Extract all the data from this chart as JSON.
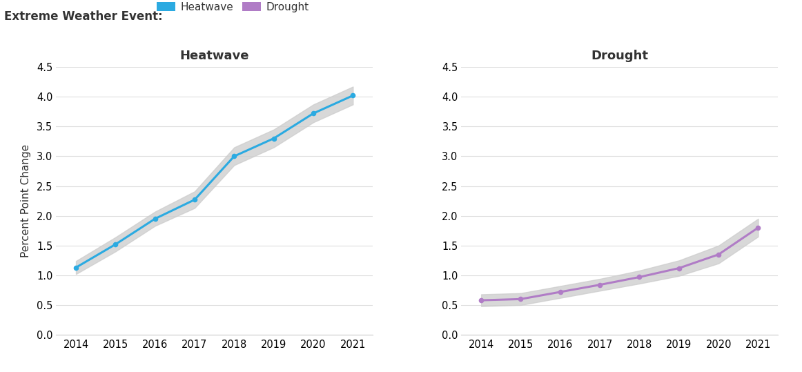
{
  "years": [
    2014,
    2015,
    2016,
    2017,
    2018,
    2019,
    2020,
    2021
  ],
  "heatwave_y": [
    1.13,
    1.52,
    1.95,
    2.27,
    3.0,
    3.3,
    3.72,
    4.02
  ],
  "heatwave_y_low": [
    1.02,
    1.4,
    1.83,
    2.13,
    2.85,
    3.15,
    3.57,
    3.87
  ],
  "heatwave_y_high": [
    1.24,
    1.64,
    2.07,
    2.41,
    3.15,
    3.45,
    3.87,
    4.17
  ],
  "drought_y": [
    0.58,
    0.6,
    0.72,
    0.84,
    0.97,
    1.12,
    1.35,
    1.8
  ],
  "drought_y_low": [
    0.48,
    0.5,
    0.62,
    0.74,
    0.86,
    0.99,
    1.2,
    1.65
  ],
  "drought_y_high": [
    0.68,
    0.7,
    0.82,
    0.94,
    1.08,
    1.25,
    1.5,
    1.95
  ],
  "heatwave_color": "#2baae1",
  "drought_color": "#b07cc6",
  "ci_color": "#cccccc",
  "ylabel": "Percent Point Change",
  "heatwave_title": "Heatwave",
  "drought_title": "Drought",
  "legend_title": "Extreme Weather Event:",
  "ylim": [
    0,
    4.5
  ],
  "yticks": [
    0,
    0.5,
    1.0,
    1.5,
    2.0,
    2.5,
    3.0,
    3.5,
    4.0,
    4.5
  ],
  "background_color": "#ffffff",
  "grid_color": "#dddddd",
  "title_fontsize": 13,
  "label_fontsize": 11,
  "tick_fontsize": 10.5,
  "legend_fontsize": 11,
  "legend_title_fontsize": 12
}
